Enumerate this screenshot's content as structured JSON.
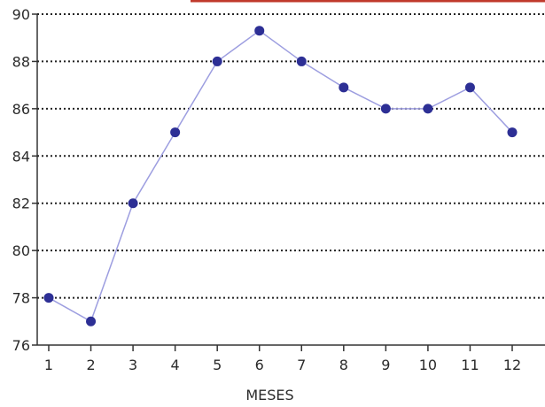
{
  "chart_data": {
    "type": "line",
    "x": [
      1,
      2,
      3,
      4,
      5,
      6,
      7,
      8,
      9,
      10,
      11,
      12
    ],
    "series": [
      {
        "values": [
          78,
          77,
          82,
          85,
          88,
          89.3,
          88,
          86.9,
          86,
          86,
          86.9,
          85
        ]
      }
    ],
    "xlabel": "MESES",
    "ylabel": "",
    "title": "",
    "xlim": [
      1,
      12
    ],
    "ylim": [
      76,
      90
    ],
    "yticks": [
      76,
      78,
      80,
      82,
      84,
      86,
      88,
      90
    ],
    "xticks": [
      1,
      2,
      3,
      4,
      5,
      6,
      7,
      8,
      9,
      10,
      11,
      12
    ],
    "grid": "horizontal-dotted",
    "legend": "none"
  },
  "colors": {
    "line": "#9d9ee0",
    "marker": "#2d2f95",
    "grid": "#222222",
    "axis": "#333333",
    "text": "#2b2b2b",
    "top_accent": "#c0392b"
  }
}
